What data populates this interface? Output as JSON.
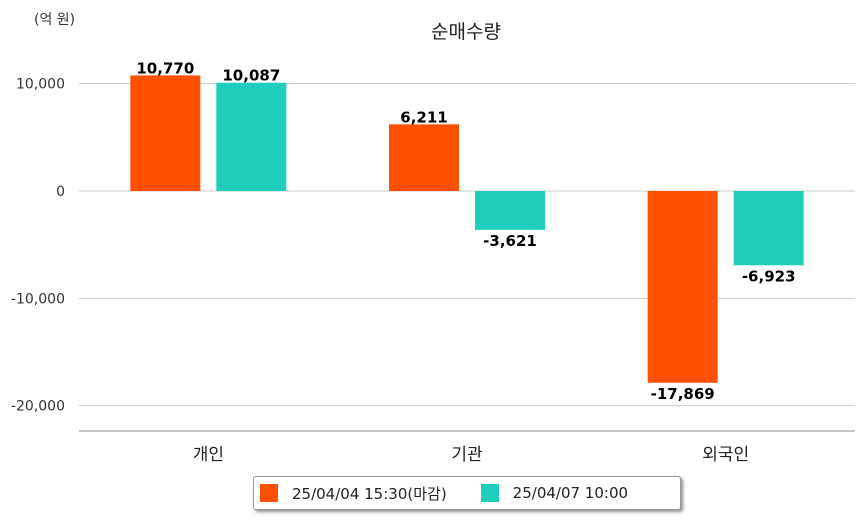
{
  "chart_data": {
    "type": "bar",
    "title": "순매수량",
    "unit_label": "(억 원)",
    "categories": [
      "개인",
      "기관",
      "외국인"
    ],
    "series": [
      {
        "name": "25/04/04 15:30(마감)",
        "color": "#FF5000",
        "values": [
          10770,
          6211,
          -17869
        ],
        "labels": [
          "10,770",
          "6,211",
          "-17,869"
        ]
      },
      {
        "name": "25/04/07 10:00",
        "color": "#1ECDBB",
        "values": [
          10087,
          -3621,
          -6923
        ],
        "labels": [
          "10,087",
          "-3,621",
          "-6,923"
        ]
      }
    ],
    "yticks": [
      10000,
      0,
      -10000,
      -20000
    ],
    "ytick_labels": [
      "10,000",
      "0",
      "-10,000",
      "-20,000"
    ],
    "ylim": [
      -22500,
      12500
    ],
    "grid": true,
    "legend_position": "bottom"
  }
}
